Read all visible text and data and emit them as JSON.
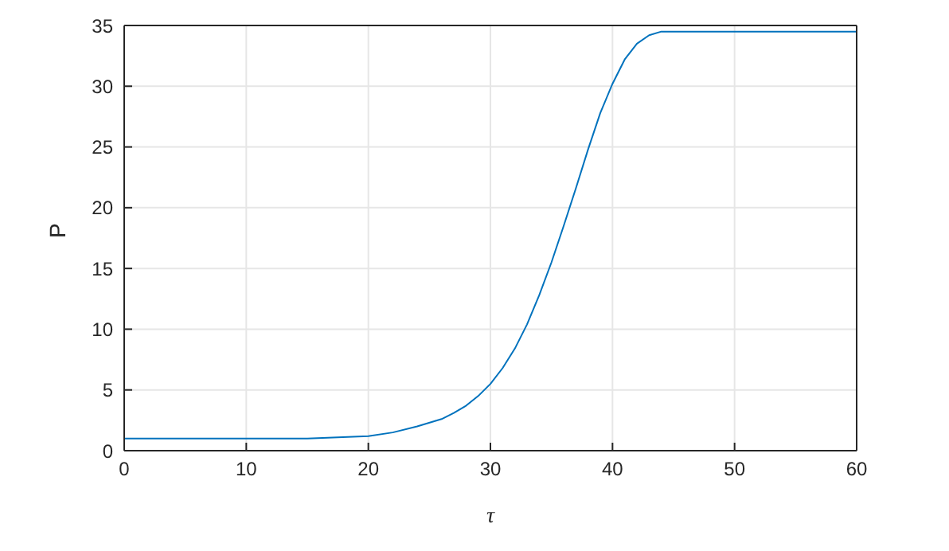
{
  "chart_data": {
    "type": "line",
    "xlabel": "τ",
    "ylabel": "P",
    "x": [
      0,
      10,
      15,
      20,
      22,
      24,
      26,
      27,
      28,
      29,
      30,
      31,
      32,
      33,
      34,
      35,
      36,
      37,
      38,
      39,
      40,
      41,
      42,
      43,
      44,
      45,
      50,
      60
    ],
    "series": [
      {
        "color": "#0072bd",
        "values": [
          1,
          1,
          1,
          1.2,
          1.5,
          2,
          2.6,
          3.1,
          3.7,
          4.5,
          5.5,
          6.8,
          8.4,
          10.4,
          12.8,
          15.5,
          18.5,
          21.6,
          24.8,
          27.8,
          30.2,
          32.2,
          33.5,
          34.2,
          34.5,
          34.5,
          34.5,
          34.5
        ]
      }
    ],
    "xlim": [
      0,
      60
    ],
    "xticks": [
      0,
      10,
      20,
      30,
      40,
      50,
      60
    ],
    "ylim": [
      0,
      35
    ],
    "yticks": [
      0,
      5,
      10,
      15,
      20,
      25,
      30,
      35
    ],
    "grid": true,
    "marker": "none",
    "line_style": "solid"
  }
}
